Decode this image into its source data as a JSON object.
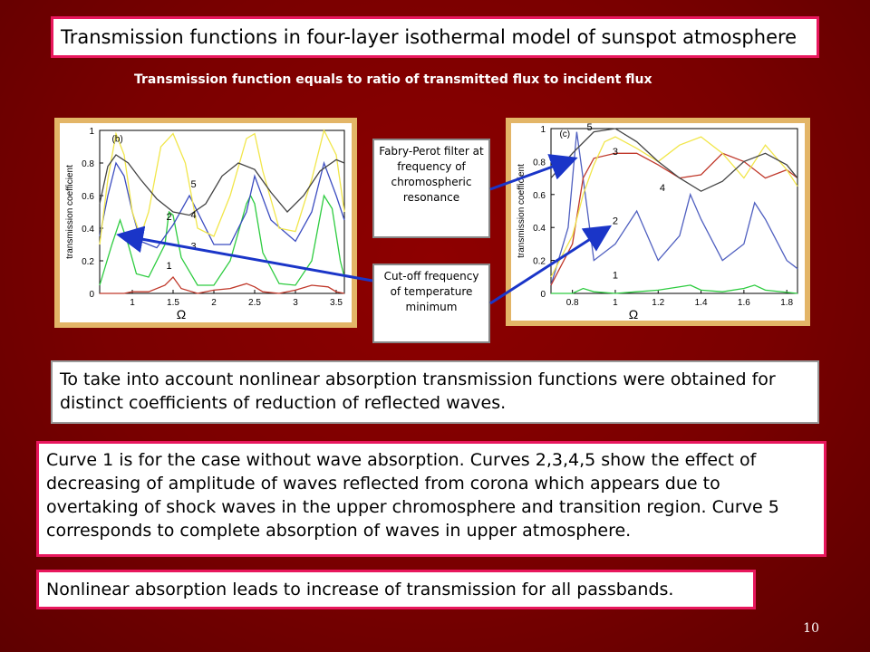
{
  "title": "Transmission functions in four-layer isothermal model of sunspot atmosphere",
  "subtitle": "Transmission function equals to ratio of transmitted flux to incident flux",
  "chart_data": [
    {
      "type": "line",
      "panel_label": "(b)",
      "ylabel": "transmission coefficient",
      "xlabel": "Ω",
      "xlim": [
        0.6,
        3.6
      ],
      "ylim": [
        0,
        1
      ],
      "xticks": [
        "1",
        "1.5",
        "2",
        "2.5",
        "3",
        "3.5"
      ],
      "yticks": [
        "0",
        "0.2",
        "0.4",
        "0.6",
        "0.8",
        "1"
      ],
      "curve_labels": [
        "1",
        "2",
        "3",
        "4",
        "5"
      ],
      "series": [
        {
          "name": "1",
          "color": "#c0392b",
          "x": [
            0.6,
            0.9,
            1.0,
            1.2,
            1.4,
            1.5,
            1.6,
            1.8,
            2.0,
            2.2,
            2.4,
            2.5,
            2.6,
            2.8,
            3.0,
            3.2,
            3.4,
            3.5,
            3.6
          ],
          "y": [
            0,
            0,
            0.01,
            0.01,
            0.05,
            0.1,
            0.03,
            0,
            0.02,
            0.03,
            0.06,
            0.04,
            0.01,
            0,
            0.02,
            0.05,
            0.04,
            0.01,
            0
          ]
        },
        {
          "name": "2",
          "color": "#2ecc40",
          "x": [
            0.6,
            0.75,
            0.85,
            0.95,
            1.05,
            1.2,
            1.4,
            1.45,
            1.5,
            1.6,
            1.8,
            2.0,
            2.2,
            2.4,
            2.45,
            2.5,
            2.6,
            2.8,
            3.0,
            3.2,
            3.35,
            3.45,
            3.55,
            3.6
          ],
          "y": [
            0.05,
            0.3,
            0.45,
            0.3,
            0.12,
            0.1,
            0.3,
            0.5,
            0.48,
            0.22,
            0.05,
            0.05,
            0.2,
            0.55,
            0.6,
            0.55,
            0.25,
            0.06,
            0.05,
            0.2,
            0.6,
            0.52,
            0.2,
            0.1
          ]
        },
        {
          "name": "3",
          "color": "#3b4cc0",
          "x": [
            0.6,
            0.7,
            0.8,
            0.9,
            1.0,
            1.1,
            1.3,
            1.5,
            1.7,
            2.0,
            2.2,
            2.4,
            2.5,
            2.7,
            3.0,
            3.2,
            3.35,
            3.5,
            3.6
          ],
          "y": [
            0.35,
            0.6,
            0.8,
            0.72,
            0.5,
            0.32,
            0.28,
            0.42,
            0.6,
            0.3,
            0.3,
            0.5,
            0.72,
            0.45,
            0.32,
            0.5,
            0.8,
            0.6,
            0.45
          ]
        },
        {
          "name": "4",
          "color": "#f1e64a",
          "x": [
            0.6,
            0.7,
            0.8,
            0.9,
            1.0,
            1.1,
            1.2,
            1.35,
            1.5,
            1.65,
            1.8,
            2.0,
            2.2,
            2.4,
            2.5,
            2.6,
            2.8,
            3.0,
            3.2,
            3.35,
            3.5,
            3.6
          ],
          "y": [
            0.3,
            0.7,
            0.98,
            0.85,
            0.5,
            0.35,
            0.5,
            0.9,
            0.98,
            0.8,
            0.4,
            0.35,
            0.6,
            0.95,
            0.98,
            0.75,
            0.4,
            0.38,
            0.7,
            1.0,
            0.85,
            0.5
          ]
        },
        {
          "name": "5",
          "color": "#444444",
          "x": [
            0.6,
            0.7,
            0.8,
            0.95,
            1.1,
            1.3,
            1.5,
            1.7,
            1.9,
            2.1,
            2.3,
            2.5,
            2.7,
            2.9,
            3.1,
            3.3,
            3.5,
            3.6
          ],
          "y": [
            0.55,
            0.78,
            0.85,
            0.8,
            0.7,
            0.58,
            0.5,
            0.48,
            0.55,
            0.72,
            0.8,
            0.76,
            0.62,
            0.5,
            0.6,
            0.75,
            0.82,
            0.8
          ]
        }
      ]
    },
    {
      "type": "line",
      "panel_label": "(c)",
      "ylabel": "transmission coefficient",
      "xlabel": "Ω",
      "xlim": [
        0.7,
        1.85
      ],
      "ylim": [
        0,
        1
      ],
      "xticks": [
        "0.8",
        "1",
        "1.2",
        "1.4",
        "1.6",
        "1.8"
      ],
      "yticks": [
        "0",
        "0.2",
        "0.4",
        "0.6",
        "0.8",
        "1"
      ],
      "curve_labels": [
        "1",
        "2",
        "3",
        "4",
        "5"
      ],
      "series": [
        {
          "name": "1",
          "color": "#2ecc40",
          "x": [
            0.7,
            0.8,
            0.85,
            0.9,
            1.0,
            1.1,
            1.2,
            1.3,
            1.35,
            1.4,
            1.5,
            1.6,
            1.65,
            1.7,
            1.85
          ],
          "y": [
            0,
            0,
            0.03,
            0.01,
            0,
            0.01,
            0.02,
            0.04,
            0.05,
            0.02,
            0.01,
            0.03,
            0.05,
            0.02,
            0
          ]
        },
        {
          "name": "2",
          "color": "#5060c0",
          "x": [
            0.7,
            0.78,
            0.82,
            0.86,
            0.9,
            1.0,
            1.1,
            1.2,
            1.3,
            1.35,
            1.4,
            1.5,
            1.6,
            1.65,
            1.7,
            1.8,
            1.85
          ],
          "y": [
            0.05,
            0.4,
            0.98,
            0.6,
            0.2,
            0.3,
            0.5,
            0.2,
            0.35,
            0.6,
            0.45,
            0.2,
            0.3,
            0.55,
            0.45,
            0.2,
            0.15
          ]
        },
        {
          "name": "3",
          "color": "#c0392b",
          "x": [
            0.7,
            0.8,
            0.85,
            0.9,
            1.0,
            1.1,
            1.2,
            1.3,
            1.4,
            1.5,
            1.6,
            1.7,
            1.8,
            1.85
          ],
          "y": [
            0.05,
            0.3,
            0.7,
            0.82,
            0.85,
            0.85,
            0.78,
            0.7,
            0.72,
            0.85,
            0.8,
            0.7,
            0.75,
            0.7
          ]
        },
        {
          "name": "4",
          "color": "#f1e64a",
          "x": [
            0.7,
            0.8,
            0.85,
            0.9,
            0.95,
            1.0,
            1.1,
            1.2,
            1.3,
            1.4,
            1.5,
            1.6,
            1.7,
            1.8,
            1.85
          ],
          "y": [
            0.1,
            0.35,
            0.6,
            0.78,
            0.92,
            0.95,
            0.88,
            0.8,
            0.9,
            0.95,
            0.85,
            0.7,
            0.9,
            0.75,
            0.65
          ]
        },
        {
          "name": "5",
          "color": "#444444",
          "x": [
            0.7,
            0.8,
            0.9,
            1.0,
            1.1,
            1.2,
            1.3,
            1.4,
            1.5,
            1.6,
            1.7,
            1.8,
            1.85
          ],
          "y": [
            0.7,
            0.85,
            0.98,
            1.0,
            0.92,
            0.8,
            0.7,
            0.62,
            0.68,
            0.8,
            0.85,
            0.78,
            0.7
          ]
        }
      ]
    }
  ],
  "callouts": {
    "fabry_perot": "Fabry-Perot filter at frequency of chromospheric resonance",
    "cutoff": "Cut-off frequency of temperature minimum"
  },
  "text_box_1": "To take into account nonlinear absorption transmission functions were obtained for distinct coefficients of reduction of reflected waves.",
  "text_box_2": "Curve 1 is for the case without wave absorption. Curves 2,3,4,5 show the effect of decreasing of amplitude of waves reflected from corona which appears due to overtaking of shock waves in the upper chromosphere and transition region. Curve 5 corresponds to complete absorption of waves in upper atmosphere.",
  "text_box_3": "Nonlinear absorption leads to increase of transmission for all passbands.",
  "page_number": "10",
  "colors": {
    "background": "#7a0000",
    "accent_border": "#e8175d",
    "chart_frame": "#e3b567",
    "arrow": "#1a35c8"
  }
}
